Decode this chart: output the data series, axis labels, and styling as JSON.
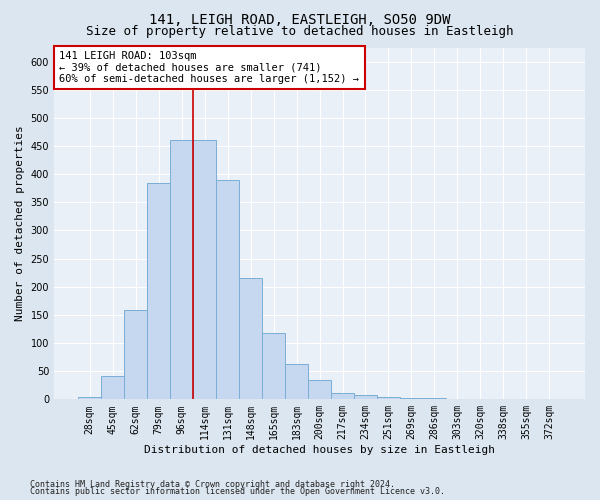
{
  "title1": "141, LEIGH ROAD, EASTLEIGH, SO50 9DW",
  "title2": "Size of property relative to detached houses in Eastleigh",
  "xlabel": "Distribution of detached houses by size in Eastleigh",
  "ylabel": "Number of detached properties",
  "bar_labels": [
    "28sqm",
    "45sqm",
    "62sqm",
    "79sqm",
    "96sqm",
    "114sqm",
    "131sqm",
    "148sqm",
    "165sqm",
    "183sqm",
    "200sqm",
    "217sqm",
    "234sqm",
    "251sqm",
    "269sqm",
    "286sqm",
    "303sqm",
    "320sqm",
    "338sqm",
    "355sqm",
    "372sqm"
  ],
  "bar_heights": [
    5,
    42,
    158,
    385,
    460,
    460,
    390,
    215,
    118,
    62,
    35,
    12,
    8,
    5,
    3,
    2,
    1,
    1,
    1,
    0,
    0
  ],
  "bar_color": "#c5d8f0",
  "bar_edge_color": "#7aaed6",
  "bar_edge_width": 0.7,
  "vline_x_index": 4.5,
  "vline_color": "#cc0000",
  "annotation_text": "141 LEIGH ROAD: 103sqm\n← 39% of detached houses are smaller (741)\n60% of semi-detached houses are larger (1,152) →",
  "annotation_box_color": "#ffffff",
  "annotation_box_edge_color": "#cc0000",
  "ylim": [
    0,
    625
  ],
  "yticks": [
    0,
    50,
    100,
    150,
    200,
    250,
    300,
    350,
    400,
    450,
    500,
    550,
    600
  ],
  "footnote1": "Contains HM Land Registry data © Crown copyright and database right 2024.",
  "footnote2": "Contains public sector information licensed under the Open Government Licence v3.0.",
  "bg_color": "#dce6f0",
  "plot_bg_color": "#eaf0f8",
  "grid_color": "#ffffff",
  "title_fontsize": 10,
  "subtitle_fontsize": 9,
  "tick_fontsize": 7,
  "label_fontsize": 8,
  "footnote_fontsize": 6
}
